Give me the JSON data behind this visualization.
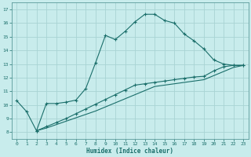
{
  "xlabel": "Humidex (Indice chaleur)",
  "background_color": "#c8ecec",
  "grid_color": "#a8d4d4",
  "line_color": "#1a6e6a",
  "xlim": [
    -0.5,
    23.5
  ],
  "ylim": [
    7.5,
    17.5
  ],
  "xticks": [
    0,
    1,
    2,
    3,
    4,
    5,
    6,
    7,
    8,
    9,
    10,
    11,
    12,
    13,
    14,
    15,
    16,
    17,
    18,
    19,
    20,
    21,
    22,
    23
  ],
  "yticks": [
    8,
    9,
    10,
    11,
    12,
    13,
    14,
    15,
    16,
    17
  ],
  "line1_x": [
    0,
    1,
    2,
    3,
    4,
    5,
    6,
    7,
    8,
    9,
    10,
    11,
    12,
    13,
    14,
    15,
    16,
    17,
    18,
    19,
    20,
    21,
    22,
    23
  ],
  "line1_y": [
    10.3,
    9.5,
    8.1,
    10.1,
    10.1,
    10.2,
    10.35,
    11.2,
    13.1,
    15.1,
    14.8,
    15.4,
    16.1,
    16.65,
    16.65,
    16.2,
    16.0,
    15.2,
    14.7,
    14.1,
    13.3,
    13.0,
    12.9,
    12.9
  ],
  "line2_x": [
    2,
    3,
    4,
    5,
    6,
    7,
    8,
    9,
    10,
    11,
    12,
    13,
    14,
    15,
    16,
    17,
    18,
    19,
    20,
    21,
    22,
    23
  ],
  "line2_y": [
    8.1,
    8.4,
    8.7,
    9.0,
    9.35,
    9.7,
    10.05,
    10.4,
    10.75,
    11.1,
    11.45,
    11.55,
    11.65,
    11.75,
    11.85,
    11.95,
    12.05,
    12.1,
    12.5,
    12.8,
    12.9,
    12.9
  ],
  "line3_x": [
    2,
    3,
    4,
    5,
    6,
    7,
    8,
    9,
    10,
    11,
    12,
    13,
    14,
    15,
    16,
    17,
    18,
    19,
    20,
    21,
    22,
    23
  ],
  "line3_y": [
    8.1,
    8.3,
    8.55,
    8.8,
    9.05,
    9.3,
    9.55,
    9.85,
    10.15,
    10.45,
    10.75,
    11.05,
    11.35,
    11.45,
    11.55,
    11.65,
    11.75,
    11.85,
    12.15,
    12.45,
    12.75,
    12.9
  ]
}
